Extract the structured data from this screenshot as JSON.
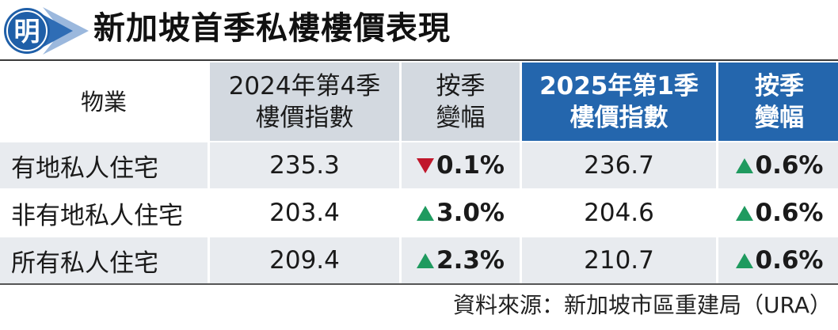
{
  "header": {
    "logo_text": "明",
    "title": "新加坡首季私樓樓價表現"
  },
  "columns": {
    "property": "物業",
    "q4_2024_line1": "2024年第4季",
    "q4_2024_line2": "樓價指數",
    "qoq_a_line1": "按季",
    "qoq_a_line2": "變幅",
    "q1_2025_line1": "2025年第1季",
    "q1_2025_line2": "樓價指數",
    "qoq_b_line1": "按季",
    "qoq_b_line2": "變幅"
  },
  "rows": [
    {
      "name": "有地私人住宅",
      "q4_2024": "235.3",
      "qoq_a": "0.1%",
      "qoq_a_dir": "down",
      "q1_2025": "236.7",
      "qoq_b": "0.6%",
      "qoq_b_dir": "up"
    },
    {
      "name": "非有地私人住宅",
      "q4_2024": "203.4",
      "qoq_a": "3.0%",
      "qoq_a_dir": "up",
      "q1_2025": "204.6",
      "qoq_b": "0.6%",
      "qoq_b_dir": "up"
    },
    {
      "name": "所有私人住宅",
      "q4_2024": "209.4",
      "qoq_a": "2.3%",
      "qoq_a_dir": "up",
      "q1_2025": "210.7",
      "qoq_b": "0.6%",
      "qoq_b_dir": "up"
    }
  ],
  "source": "資料來源：新加坡市區重建局（URA）",
  "colors": {
    "header_blue": "#2466ad",
    "header_grey": "#d3d9e0",
    "row_shade": "#e8ebef",
    "up_green": "#1f9a5f",
    "down_red": "#c0172b",
    "logo_blue": "#1f5fa8"
  }
}
